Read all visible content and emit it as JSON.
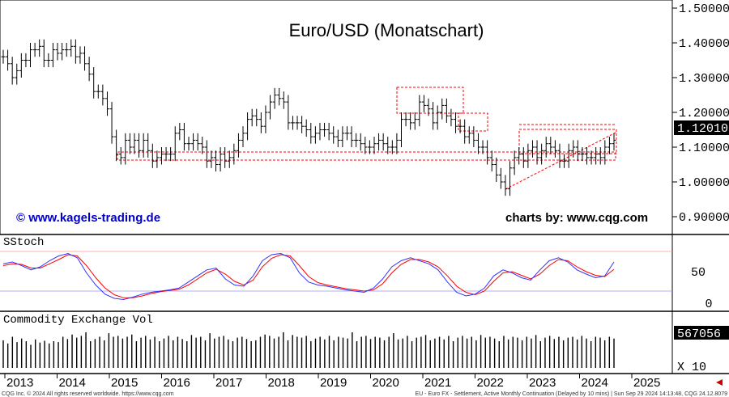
{
  "chart_data": {
    "type": "bar",
    "title": "Euro/USD (Monatschart)",
    "price_axis": {
      "ticks": [
        "1.50000",
        "1.40000",
        "1.30000",
        "1.20000",
        "1.10000",
        "1.00000",
        "0.90000"
      ],
      "values": [
        1.5,
        1.4,
        1.3,
        1.2,
        1.1,
        1.0,
        0.9
      ],
      "last_price": "1.12010"
    },
    "years": [
      "2013",
      "2014",
      "2015",
      "2016",
      "2017",
      "2018",
      "2019",
      "2020",
      "2021",
      "2022",
      "2023",
      "2024",
      "2025"
    ],
    "ohlc_closes": [
      1.36,
      1.34,
      1.3,
      1.32,
      1.35,
      1.35,
      1.38,
      1.38,
      1.39,
      1.35,
      1.35,
      1.38,
      1.37,
      1.38,
      1.38,
      1.39,
      1.36,
      1.37,
      1.34,
      1.31,
      1.26,
      1.26,
      1.24,
      1.21,
      1.13,
      1.08,
      1.07,
      1.12,
      1.1,
      1.12,
      1.09,
      1.12,
      1.09,
      1.06,
      1.07,
      1.08,
      1.08,
      1.08,
      1.14,
      1.15,
      1.11,
      1.11,
      1.12,
      1.11,
      1.1,
      1.06,
      1.07,
      1.05,
      1.08,
      1.06,
      1.07,
      1.09,
      1.12,
      1.14,
      1.18,
      1.19,
      1.18,
      1.16,
      1.2,
      1.23,
      1.25,
      1.24,
      1.23,
      1.17,
      1.17,
      1.17,
      1.16,
      1.15,
      1.13,
      1.14,
      1.15,
      1.15,
      1.14,
      1.13,
      1.12,
      1.14,
      1.14,
      1.12,
      1.12,
      1.11,
      1.1,
      1.1,
      1.11,
      1.12,
      1.11,
      1.1,
      1.1,
      1.12,
      1.18,
      1.18,
      1.17,
      1.18,
      1.23,
      1.22,
      1.21,
      1.17,
      1.2,
      1.22,
      1.19,
      1.18,
      1.16,
      1.16,
      1.13,
      1.14,
      1.12,
      1.1,
      1.1,
      1.07,
      1.05,
      1.02,
      1.0,
      0.98,
      1.04,
      1.07,
      1.08,
      1.06,
      1.09,
      1.1,
      1.07,
      1.09,
      1.11,
      1.1,
      1.09,
      1.06,
      1.06,
      1.09,
      1.1,
      1.08,
      1.08,
      1.07,
      1.07,
      1.08,
      1.07,
      1.1,
      1.11,
      1.12
    ],
    "sstoch": {
      "label": "SStoch",
      "ticks": [
        "50",
        "0"
      ],
      "k": [
        65,
        68,
        62,
        55,
        60,
        70,
        78,
        82,
        75,
        50,
        30,
        15,
        8,
        6,
        10,
        15,
        18,
        20,
        22,
        25,
        35,
        45,
        55,
        58,
        40,
        30,
        28,
        45,
        70,
        80,
        82,
        75,
        50,
        35,
        30,
        28,
        25,
        22,
        20,
        18,
        25,
        40,
        60,
        70,
        75,
        70,
        65,
        55,
        35,
        18,
        12,
        15,
        25,
        45,
        55,
        50,
        42,
        38,
        55,
        70,
        75,
        68,
        55,
        48,
        42,
        45,
        68
      ],
      "d": [
        62,
        65,
        64,
        58,
        58,
        65,
        72,
        80,
        78,
        62,
        42,
        25,
        14,
        9,
        9,
        12,
        16,
        19,
        21,
        23,
        30,
        40,
        50,
        56,
        48,
        36,
        30,
        38,
        60,
        74,
        80,
        78,
        62,
        44,
        34,
        30,
        27,
        24,
        22,
        20,
        22,
        32,
        50,
        64,
        72,
        72,
        68,
        60,
        45,
        28,
        18,
        14,
        20,
        36,
        50,
        52,
        46,
        40,
        48,
        62,
        72,
        70,
        60,
        52,
        46,
        44,
        56
      ]
    },
    "volume": {
      "label": "Commodity Exchange Vol",
      "last_value": "567056",
      "multiplier": "X 10",
      "bars": [
        0.62,
        0.55,
        0.7,
        0.58,
        0.66,
        0.6,
        0.52,
        0.64,
        0.57,
        0.61,
        0.55,
        0.6,
        0.58,
        0.7,
        0.65,
        0.75,
        0.68,
        0.72,
        0.8,
        0.6,
        0.65,
        0.7,
        0.62,
        0.78,
        0.7,
        0.72,
        0.66,
        0.7,
        0.75,
        0.6,
        0.68,
        0.72,
        0.64,
        0.7,
        0.6,
        0.66,
        0.72,
        0.62,
        0.7,
        0.65,
        0.6,
        0.74,
        0.68,
        0.7,
        0.62,
        0.78,
        0.66,
        0.7,
        0.72,
        0.64,
        0.6,
        0.68,
        0.7,
        0.65,
        0.6,
        0.62,
        0.7,
        0.75,
        0.72,
        0.66,
        0.7,
        0.8,
        0.62,
        0.74,
        0.7,
        0.68,
        0.72,
        0.6,
        0.66,
        0.7,
        0.64,
        0.72,
        0.62,
        0.7,
        0.68,
        0.66,
        0.8,
        0.6,
        0.7,
        0.72,
        0.65,
        0.7,
        0.68,
        0.62,
        0.7,
        0.78,
        0.64,
        0.66,
        0.72,
        0.6,
        0.68,
        0.7,
        0.74,
        0.62,
        0.66,
        0.7,
        0.64,
        0.72,
        0.6,
        0.68,
        0.72,
        0.66,
        0.7,
        0.62,
        0.74,
        0.68,
        0.7,
        0.66,
        0.6,
        0.72,
        0.64,
        0.7,
        0.68,
        0.62,
        0.7,
        0.66,
        0.74,
        0.6,
        0.68,
        0.72,
        0.65,
        0.7,
        0.62,
        0.68,
        0.7,
        0.64,
        0.72,
        0.66,
        0.6,
        0.7,
        0.68,
        0.62,
        0.7,
        0.66
      ]
    },
    "colors": {
      "bars": "#000000",
      "sstoch_k": "#3333ff",
      "sstoch_d": "#ff0000",
      "box_lines": "#ff0000",
      "credit_left": "#0000cc",
      "last_price_bg": "#000000",
      "last_price_text": "#ffffff"
    }
  },
  "credits": {
    "left": "© www.kagels-trading.de",
    "right": "charts by: www.cqg.com"
  },
  "footer": {
    "left": "CQG Inc. © 2024 All rights reserved worldwide. https://www.cqg.com",
    "right": "EU - Euro FX - Settlement, Active Monthly Continuation (Delayed by 10 mins) | Sun Sep 29 2024 14:13:48, CQG 24.12.8079"
  }
}
